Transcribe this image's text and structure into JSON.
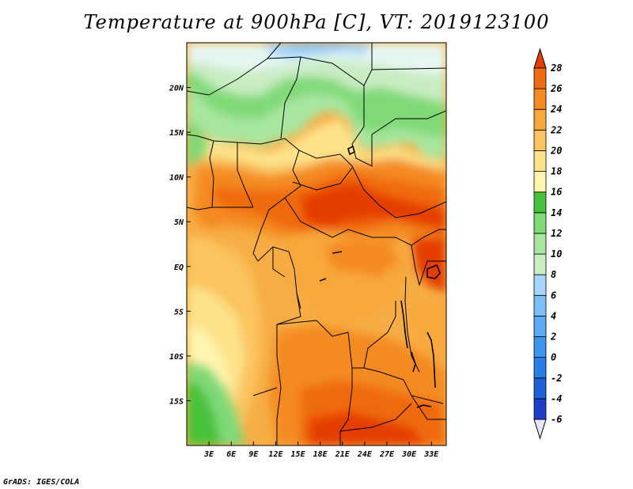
{
  "title": "Temperature at 900hPa [C], VT: 2019123100",
  "footer": "GrADS: IGES/COLA",
  "map": {
    "lon_min": 0,
    "lon_max": 35,
    "lat_min": -20,
    "lat_max": 25,
    "lon_ticks": [
      {
        "value": 3,
        "label": "3E"
      },
      {
        "value": 6,
        "label": "6E"
      },
      {
        "value": 9,
        "label": "9E"
      },
      {
        "value": 12,
        "label": "12E"
      },
      {
        "value": 15,
        "label": "15E"
      },
      {
        "value": 18,
        "label": "18E"
      },
      {
        "value": 21,
        "label": "21E"
      },
      {
        "value": 24,
        "label": "24E"
      },
      {
        "value": 27,
        "label": "27E"
      },
      {
        "value": 30,
        "label": "30E"
      },
      {
        "value": 33,
        "label": "33E"
      }
    ],
    "lat_ticks": [
      {
        "value": 20,
        "label": "20N"
      },
      {
        "value": 15,
        "label": "15N"
      },
      {
        "value": 10,
        "label": "10N"
      },
      {
        "value": 5,
        "label": "5N"
      },
      {
        "value": 0,
        "label": "EQ"
      },
      {
        "value": -5,
        "label": "5S"
      },
      {
        "value": -10,
        "label": "10S"
      },
      {
        "value": -15,
        "label": "15S"
      }
    ]
  },
  "colorbar": {
    "levels": [
      "-6",
      "-4",
      "-2",
      "0",
      "2",
      "4",
      "6",
      "8",
      "10",
      "12",
      "14",
      "16",
      "18",
      "20",
      "22",
      "24",
      "26",
      "28"
    ],
    "colors": [
      "#1a1aa0",
      "#1e3ec8",
      "#1f5fd8",
      "#2a7fe6",
      "#3c96ee",
      "#5aabf3",
      "#7dc0f7",
      "#a6d6fb",
      "#c9ecc3",
      "#a8e6a0",
      "#7fd977",
      "#46c23a",
      "#fff5b0",
      "#fde28a",
      "#fbc45e",
      "#f8a83a",
      "#f48a20",
      "#ef6a10",
      "#e43d06"
    ],
    "under_color": "#e6e6fa"
  }
}
